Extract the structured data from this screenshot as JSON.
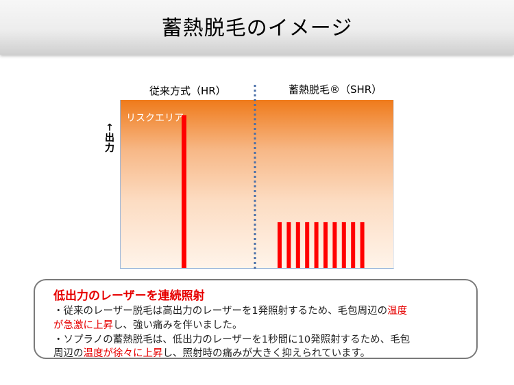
{
  "slide": {
    "title": "蓄熱脱毛のイメージ"
  },
  "chart_data": {
    "type": "bar",
    "panels": [
      {
        "name": "従来方式（HR）",
        "bars": [
          {
            "value": 1.0
          }
        ]
      },
      {
        "name": "蓄熱脱毛®（SHR）",
        "bars": [
          {
            "value": 0.3
          },
          {
            "value": 0.3
          },
          {
            "value": 0.3
          },
          {
            "value": 0.3
          },
          {
            "value": 0.3
          },
          {
            "value": 0.3
          },
          {
            "value": 0.3
          },
          {
            "value": 0.3
          },
          {
            "value": 0.3
          },
          {
            "value": 0.3
          }
        ]
      }
    ],
    "ylabel": "↑出力",
    "risk_area_label": "リスクエリア",
    "ylim": [
      0,
      1.1
    ],
    "divider": "dotted vertical line between panels",
    "bar_color": "#ff0000",
    "background_gradient": [
      "#ef7a1a",
      "#fff4ea"
    ],
    "divider_color": "#4a6fa8"
  },
  "note": {
    "heading": "低出力のレーザーを連続照射",
    "line1_a": "・従来のレーザー脱毛は高出力のレーザーを1発照射するため、毛包周辺の",
    "line1_red": "温度",
    "line2_red": "が急激に上昇",
    "line2_b": "し、強い痛みを伴いました。",
    "line3": "・ソプラノの蓄熱脱毛は、低出力のレーザーを1秒間に10発照射するため、毛包",
    "line4_a": "周辺の",
    "line4_red": "温度が徐々に上昇",
    "line4_b": "し、照射時の痛みが大きく抑えられています。"
  }
}
